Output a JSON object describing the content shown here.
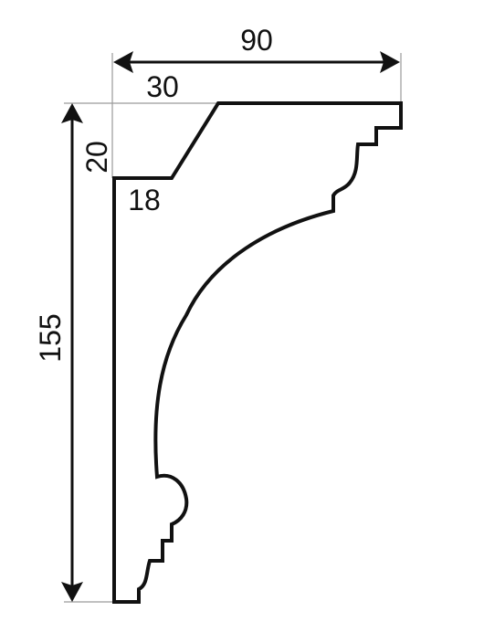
{
  "dimensions": {
    "total_width": "90",
    "top_offset": "30",
    "top_height": "20",
    "wall_depth": "18",
    "total_height": "155"
  }
}
